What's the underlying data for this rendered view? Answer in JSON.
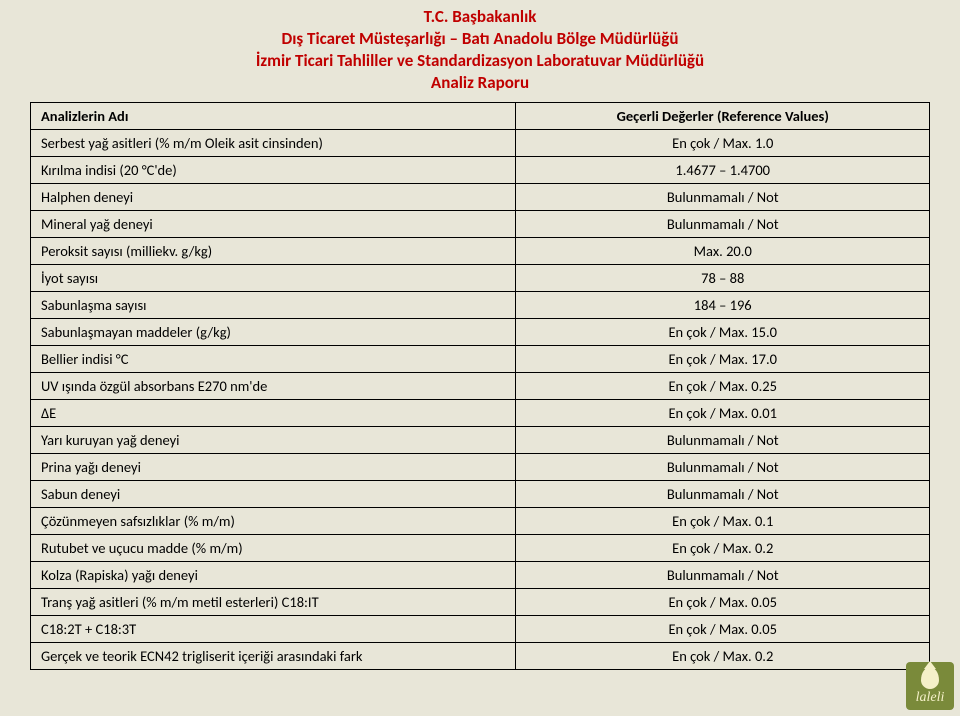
{
  "header": {
    "line1": "T.C. Başbakanlık",
    "line2": "Dış Ticaret Müsteşarlığı – Batı Anadolu Bölge Müdürlüğü",
    "line3": "İzmir Ticari Tahliller ve Standardizasyon Laboratuvar Müdürlüğü",
    "line4": "Analiz Raporu"
  },
  "table": {
    "col1_header": "Analizlerin Adı",
    "col2_header": "Geçerli Değerler (Reference Values)",
    "rows": [
      {
        "name": "Serbest yağ asitleri (% m/m Oleik asit cinsinden)",
        "value": "En çok / Max. 1.0"
      },
      {
        "name": "Kırılma indisi (20 °C'de)",
        "value": "1.4677 – 1.4700"
      },
      {
        "name": "Halphen deneyi",
        "value": "Bulunmamalı / Not"
      },
      {
        "name": "Mineral yağ deneyi",
        "value": "Bulunmamalı / Not"
      },
      {
        "name": "Peroksit sayısı (milliekv. g/kg)",
        "value": "Max. 20.0"
      },
      {
        "name": "İyot sayısı",
        "value": "78 – 88"
      },
      {
        "name": "Sabunlaşma sayısı",
        "value": "184 – 196"
      },
      {
        "name": "Sabunlaşmayan maddeler (g/kg)",
        "value": "En çok / Max. 15.0"
      },
      {
        "name": "Bellier indisi °C",
        "value": "En çok / Max. 17.0"
      },
      {
        "name": "UV ışında özgül absorbans E270 nm'de",
        "value": "En çok / Max. 0.25"
      },
      {
        "name": "ΔE",
        "value": "En çok / Max. 0.01"
      },
      {
        "name": "Yarı kuruyan yağ deneyi",
        "value": "Bulunmamalı / Not"
      },
      {
        "name": "Prina yağı deneyi",
        "value": "Bulunmamalı / Not"
      },
      {
        "name": "Sabun deneyi",
        "value": "Bulunmamalı / Not"
      },
      {
        "name": "Çözünmeyen safsızlıklar (% m/m)",
        "value": "En çok / Max. 0.1"
      },
      {
        "name": "Rutubet ve uçucu madde (% m/m)",
        "value": "En çok / Max. 0.2"
      },
      {
        "name": "Kolza (Rapiska) yağı deneyi",
        "value": "Bulunmamalı / Not"
      },
      {
        "name": "Tranş yağ asitleri (% m/m metil esterleri) C18:IT",
        "value": "En çok / Max. 0.05"
      },
      {
        "name": "C18:2T + C18:3T",
        "value": "En çok / Max. 0.05"
      },
      {
        "name": "Gerçek ve teorik ECN42 trigliserit içeriği arasındaki fark",
        "value": "En çok / Max. 0.2"
      }
    ]
  },
  "logo": {
    "text": "laleli"
  }
}
